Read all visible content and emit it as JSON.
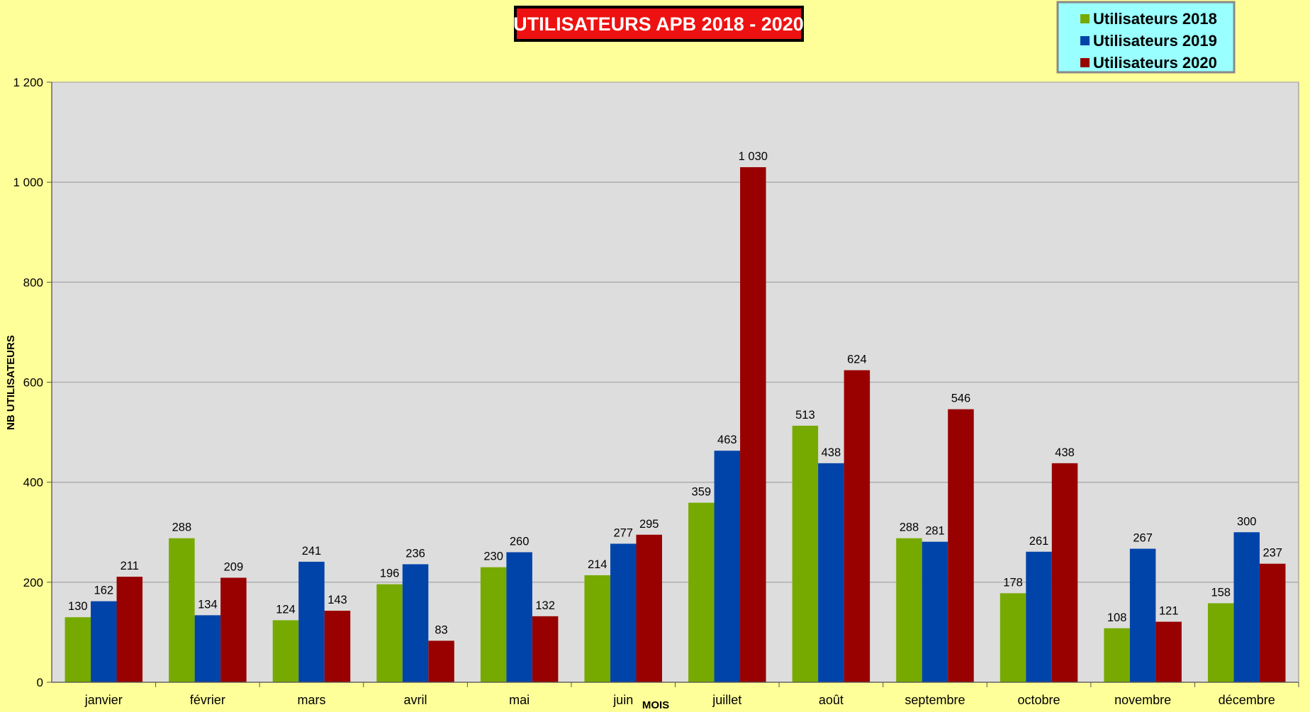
{
  "chart_data": {
    "type": "bar",
    "title": "UTILISATEURS APB 2018 - 2020",
    "xlabel": "MOIS",
    "ylabel": "NB UTILISATEURS",
    "ylim": [
      0,
      1200
    ],
    "yticks": [
      0,
      200,
      400,
      600,
      800,
      1000,
      1200
    ],
    "ytick_labels": [
      "0",
      "200",
      "400",
      "600",
      "800",
      "1 000",
      "1 200"
    ],
    "grid": true,
    "legend_position": "top-right",
    "categories": [
      "janvier",
      "février",
      "mars",
      "avril",
      "mai",
      "juin",
      "juillet",
      "août",
      "septembre",
      "octobre",
      "novembre",
      "décembre"
    ],
    "series": [
      {
        "name": "Utilisateurs 2018",
        "color": "#77aa00",
        "values": [
          130,
          288,
          124,
          196,
          230,
          214,
          359,
          513,
          288,
          178,
          108,
          158
        ],
        "value_labels": [
          "130",
          "288",
          "124",
          "196",
          "230",
          "214",
          "359",
          "513",
          "288",
          "178",
          "108",
          "158"
        ]
      },
      {
        "name": "Utilisateurs 2019",
        "color": "#0044aa",
        "values": [
          162,
          134,
          241,
          236,
          260,
          277,
          463,
          438,
          281,
          261,
          267,
          300
        ],
        "value_labels": [
          "162",
          "134",
          "241",
          "236",
          "260",
          "277",
          "463",
          "438",
          "281",
          "261",
          "267",
          "300"
        ]
      },
      {
        "name": "Utilisateurs 2020",
        "color": "#990000",
        "values": [
          211,
          209,
          143,
          83,
          132,
          295,
          1030,
          624,
          546,
          438,
          121,
          237
        ],
        "value_labels": [
          "211",
          "209",
          "143",
          "83",
          "132",
          "295",
          "1 030",
          "624",
          "546",
          "438",
          "121",
          "237"
        ]
      }
    ]
  },
  "colors": {
    "page_background": "#ffff99",
    "plot_background": "#dddddd",
    "grid": "#aaaaaa",
    "title_background": "#ee1111",
    "title_border": "#000000",
    "legend_background": "#99ffff",
    "legend_border": "#888888"
  }
}
